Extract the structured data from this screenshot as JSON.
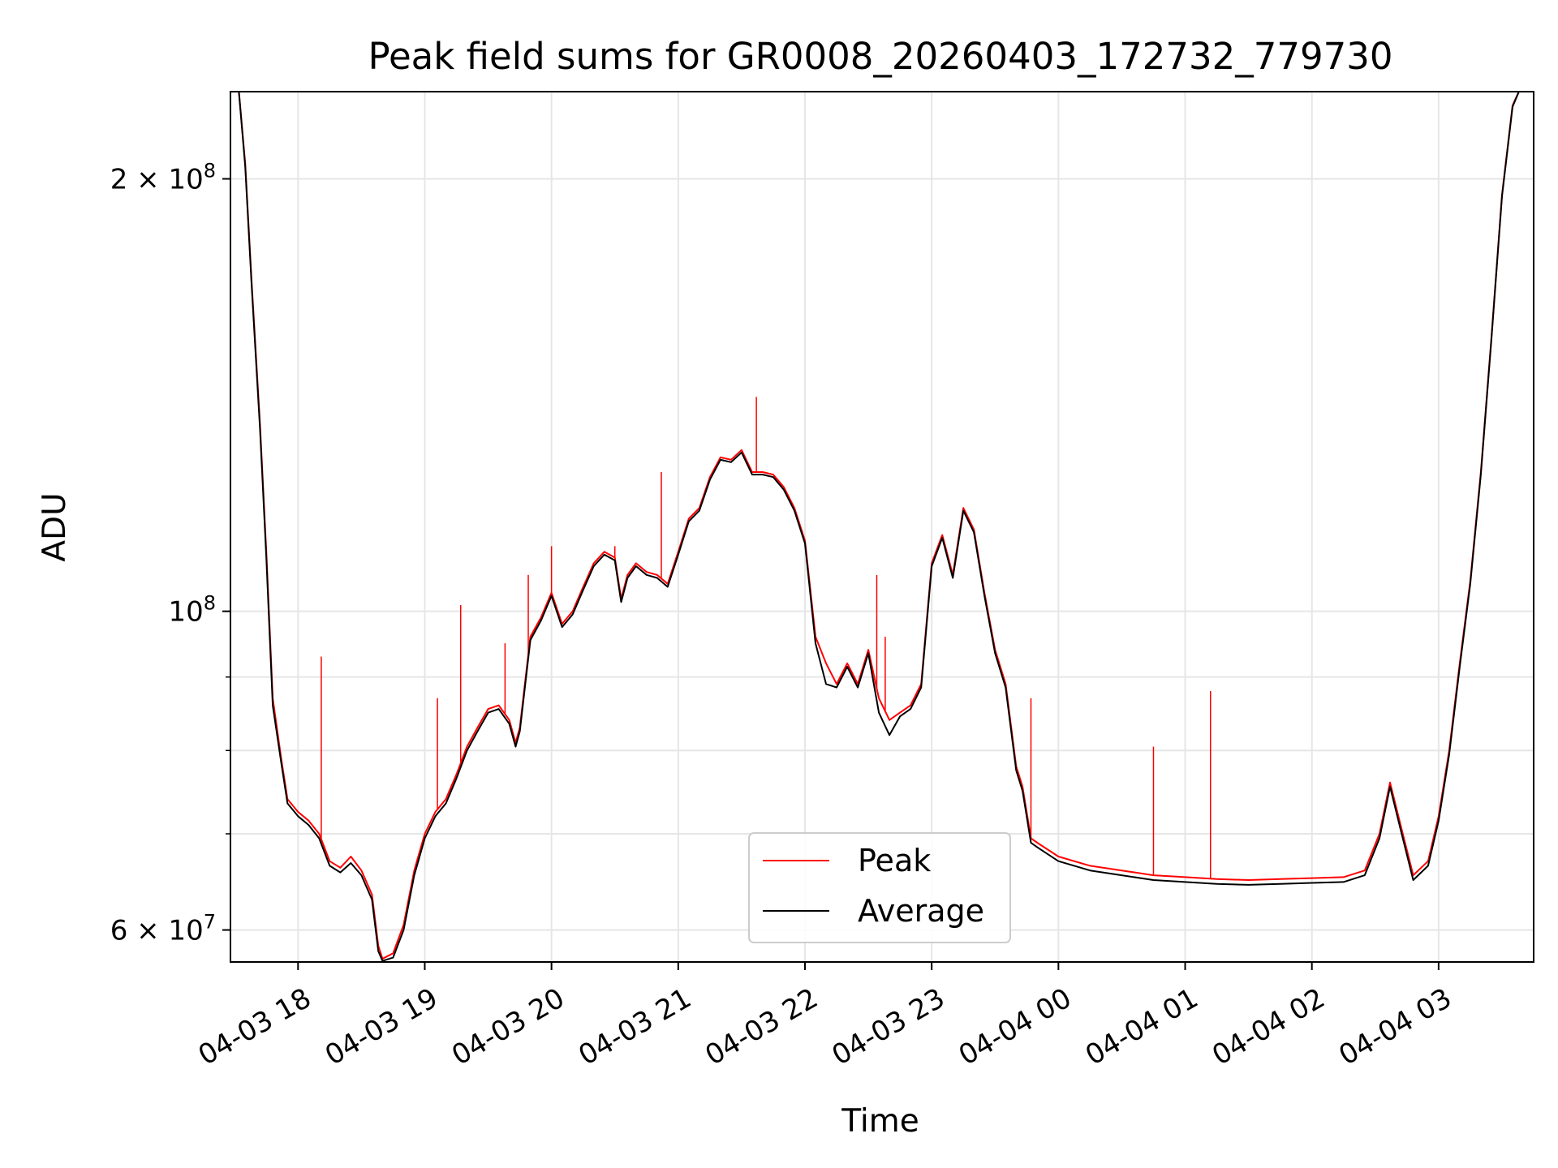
{
  "chart_data": {
    "type": "line",
    "title": "Peak field sums for GR0008_20260403_172732_779730",
    "xlabel": "Time",
    "ylabel": "ADU",
    "xlim": [
      "2026-04-03 17:28",
      "2026-04-04 03:45"
    ],
    "ylim": [
      57000000,
      230000000
    ],
    "yscale": "log",
    "grid": true,
    "legend_position": "lower center",
    "x_ticks": [
      "2026-04-03 18:00",
      "2026-04-03 19:00",
      "2026-04-03 20:00",
      "2026-04-03 21:00",
      "2026-04-03 22:00",
      "2026-04-03 23:00",
      "2026-04-04 00:00",
      "2026-04-04 01:00",
      "2026-04-04 02:00",
      "2026-04-04 03:00"
    ],
    "x_tick_labels": [
      "04-03 18",
      "04-03 19",
      "04-03 20",
      "04-03 21",
      "04-03 22",
      "04-03 23",
      "04-04 00",
      "04-04 01",
      "04-04 02",
      "04-04 03"
    ],
    "y_major_ticks": [
      {
        "value": 60000000,
        "base": "6 × 10",
        "exp": "7"
      },
      {
        "value": 100000000,
        "base": "10",
        "exp": "8"
      },
      {
        "value": 200000000,
        "base": "2 × 10",
        "exp": "8"
      }
    ],
    "y_minor_ticks": [
      70000000,
      80000000,
      90000000
    ],
    "series": [
      {
        "name": "Peak",
        "color": "#ff0000",
        "points": [
          [
            "2026-04-03 17:32",
            230000000
          ],
          [
            "2026-04-03 17:35",
            205000000
          ],
          [
            "2026-04-03 17:38",
            170000000
          ],
          [
            "2026-04-03 17:42",
            135000000
          ],
          [
            "2026-04-03 17:45",
            110000000
          ],
          [
            "2026-04-03 17:48",
            87000000
          ],
          [
            "2026-04-03 17:52",
            79000000
          ],
          [
            "2026-04-03 17:55",
            74000000
          ],
          [
            "2026-04-03 18:00",
            72500000
          ],
          [
            "2026-04-03 18:05",
            71500000
          ],
          [
            "2026-04-03 18:10",
            70000000
          ],
          [
            "2026-04-03 18:15",
            67000000
          ],
          [
            "2026-04-03 18:20",
            66300000
          ],
          [
            "2026-04-03 18:25",
            67500000
          ],
          [
            "2026-04-03 18:30",
            66000000
          ],
          [
            "2026-04-03 18:35",
            63500000
          ],
          [
            "2026-04-03 18:38",
            58500000
          ],
          [
            "2026-04-03 18:40",
            57300000
          ],
          [
            "2026-04-03 18:45",
            57800000
          ],
          [
            "2026-04-03 18:50",
            60500000
          ],
          [
            "2026-04-03 18:55",
            66000000
          ],
          [
            "2026-04-03 19:00",
            70000000
          ],
          [
            "2026-04-03 19:05",
            72500000
          ],
          [
            "2026-04-03 19:10",
            74000000
          ],
          [
            "2026-04-03 19:15",
            77000000
          ],
          [
            "2026-04-03 19:20",
            80500000
          ],
          [
            "2026-04-03 19:25",
            83000000
          ],
          [
            "2026-04-03 19:30",
            85500000
          ],
          [
            "2026-04-03 19:35",
            86000000
          ],
          [
            "2026-04-03 19:40",
            84000000
          ],
          [
            "2026-04-03 19:43",
            81000000
          ],
          [
            "2026-04-03 19:45",
            83000000
          ],
          [
            "2026-04-03 19:50",
            96000000
          ],
          [
            "2026-04-03 19:55",
            99000000
          ],
          [
            "2026-04-03 20:00",
            103000000
          ],
          [
            "2026-04-03 20:05",
            98000000
          ],
          [
            "2026-04-03 20:10",
            100000000
          ],
          [
            "2026-04-03 20:15",
            104000000
          ],
          [
            "2026-04-03 20:20",
            108000000
          ],
          [
            "2026-04-03 20:25",
            110000000
          ],
          [
            "2026-04-03 20:30",
            109000000
          ],
          [
            "2026-04-03 20:33",
            102000000
          ],
          [
            "2026-04-03 20:36",
            106000000
          ],
          [
            "2026-04-03 20:40",
            108000000
          ],
          [
            "2026-04-03 20:45",
            106500000
          ],
          [
            "2026-04-03 20:50",
            106000000
          ],
          [
            "2026-04-03 20:55",
            104500000
          ],
          [
            "2026-04-03 21:00",
            110000000
          ],
          [
            "2026-04-03 21:05",
            116000000
          ],
          [
            "2026-04-03 21:10",
            118000000
          ],
          [
            "2026-04-03 21:15",
            124000000
          ],
          [
            "2026-04-03 21:20",
            128000000
          ],
          [
            "2026-04-03 21:25",
            127500000
          ],
          [
            "2026-04-03 21:30",
            129500000
          ],
          [
            "2026-04-03 21:35",
            125000000
          ],
          [
            "2026-04-03 21:40",
            125000000
          ],
          [
            "2026-04-03 21:45",
            124500000
          ],
          [
            "2026-04-03 21:50",
            122000000
          ],
          [
            "2026-04-03 21:55",
            118000000
          ],
          [
            "2026-04-03 22:00",
            112000000
          ],
          [
            "2026-04-03 22:05",
            96000000
          ],
          [
            "2026-04-03 22:10",
            92000000
          ],
          [
            "2026-04-03 22:15",
            89000000
          ],
          [
            "2026-04-03 22:20",
            92000000
          ],
          [
            "2026-04-03 22:25",
            89000000
          ],
          [
            "2026-04-03 22:30",
            94000000
          ],
          [
            "2026-04-03 22:35",
            87000000
          ],
          [
            "2026-04-03 22:40",
            84000000
          ],
          [
            "2026-04-03 22:45",
            85000000
          ],
          [
            "2026-04-03 22:50",
            86000000
          ],
          [
            "2026-04-03 22:55",
            89000000
          ],
          [
            "2026-04-03 23:00",
            108000000
          ],
          [
            "2026-04-03 23:05",
            113000000
          ],
          [
            "2026-04-03 23:10",
            106000000
          ],
          [
            "2026-04-03 23:15",
            118000000
          ],
          [
            "2026-04-03 23:20",
            114000000
          ],
          [
            "2026-04-03 23:25",
            103000000
          ],
          [
            "2026-04-03 23:30",
            94000000
          ],
          [
            "2026-04-03 23:35",
            89000000
          ],
          [
            "2026-04-03 23:40",
            78000000
          ],
          [
            "2026-04-03 23:43",
            75500000
          ],
          [
            "2026-04-03 23:47",
            69500000
          ],
          [
            "2026-04-03 23:50",
            69000000
          ],
          [
            "2026-04-04 00:00",
            67500000
          ],
          [
            "2026-04-04 00:15",
            66500000
          ],
          [
            "2026-04-04 00:30",
            66000000
          ],
          [
            "2026-04-04 00:45",
            65500000
          ],
          [
            "2026-04-04 01:00",
            65300000
          ],
          [
            "2026-04-04 01:15",
            65100000
          ],
          [
            "2026-04-04 01:30",
            65000000
          ],
          [
            "2026-04-04 01:45",
            65100000
          ],
          [
            "2026-04-04 02:00",
            65200000
          ],
          [
            "2026-04-04 02:15",
            65300000
          ],
          [
            "2026-04-04 02:25",
            66000000
          ],
          [
            "2026-04-04 02:32",
            70000000
          ],
          [
            "2026-04-04 02:37",
            76000000
          ],
          [
            "2026-04-04 02:42",
            71000000
          ],
          [
            "2026-04-04 02:48",
            65500000
          ],
          [
            "2026-04-04 02:55",
            67000000
          ],
          [
            "2026-04-04 03:00",
            72000000
          ],
          [
            "2026-04-04 03:05",
            80000000
          ],
          [
            "2026-04-04 03:10",
            92000000
          ],
          [
            "2026-04-04 03:15",
            105000000
          ],
          [
            "2026-04-04 03:20",
            125000000
          ],
          [
            "2026-04-04 03:25",
            155000000
          ],
          [
            "2026-04-04 03:30",
            195000000
          ],
          [
            "2026-04-04 03:35",
            225000000
          ],
          [
            "2026-04-04 03:38",
            230000000
          ]
        ],
        "spikes": [
          [
            "2026-04-03 18:11",
            93000000
          ],
          [
            "2026-04-03 19:06",
            87000000
          ],
          [
            "2026-04-03 19:17",
            101000000
          ],
          [
            "2026-04-03 19:38",
            95000000
          ],
          [
            "2026-04-03 19:49",
            106000000
          ],
          [
            "2026-04-03 20:00",
            111000000
          ],
          [
            "2026-04-03 20:30",
            111000000
          ],
          [
            "2026-04-03 20:52",
            125000000
          ],
          [
            "2026-04-03 21:37",
            141000000
          ],
          [
            "2026-04-03 22:34",
            106000000
          ],
          [
            "2026-04-03 22:38",
            96000000
          ],
          [
            "2026-04-03 23:47",
            87000000
          ],
          [
            "2026-04-04 00:45",
            80500000
          ],
          [
            "2026-04-04 01:12",
            88000000
          ]
        ]
      },
      {
        "name": "Average",
        "color": "#000000",
        "points": [
          [
            "2026-04-03 17:32",
            230000000
          ],
          [
            "2026-04-03 17:35",
            204000000
          ],
          [
            "2026-04-03 17:38",
            169000000
          ],
          [
            "2026-04-03 17:42",
            134000000
          ],
          [
            "2026-04-03 17:45",
            109000000
          ],
          [
            "2026-04-03 17:48",
            86000000
          ],
          [
            "2026-04-03 17:52",
            78500000
          ],
          [
            "2026-04-03 17:55",
            73500000
          ],
          [
            "2026-04-03 18:00",
            72000000
          ],
          [
            "2026-04-03 18:05",
            71000000
          ],
          [
            "2026-04-03 18:10",
            69500000
          ],
          [
            "2026-04-03 18:15",
            66500000
          ],
          [
            "2026-04-03 18:20",
            65800000
          ],
          [
            "2026-04-03 18:25",
            66800000
          ],
          [
            "2026-04-03 18:30",
            65500000
          ],
          [
            "2026-04-03 18:35",
            63000000
          ],
          [
            "2026-04-03 18:38",
            58000000
          ],
          [
            "2026-04-03 18:40",
            57100000
          ],
          [
            "2026-04-03 18:45",
            57400000
          ],
          [
            "2026-04-03 18:50",
            60000000
          ],
          [
            "2026-04-03 18:55",
            65500000
          ],
          [
            "2026-04-03 19:00",
            69500000
          ],
          [
            "2026-04-03 19:05",
            72000000
          ],
          [
            "2026-04-03 19:10",
            73500000
          ],
          [
            "2026-04-03 19:15",
            76500000
          ],
          [
            "2026-04-03 19:20",
            80000000
          ],
          [
            "2026-04-03 19:25",
            82500000
          ],
          [
            "2026-04-03 19:30",
            85000000
          ],
          [
            "2026-04-03 19:35",
            85500000
          ],
          [
            "2026-04-03 19:40",
            83500000
          ],
          [
            "2026-04-03 19:43",
            80500000
          ],
          [
            "2026-04-03 19:45",
            82500000
          ],
          [
            "2026-04-03 19:50",
            95500000
          ],
          [
            "2026-04-03 19:55",
            98500000
          ],
          [
            "2026-04-03 20:00",
            102500000
          ],
          [
            "2026-04-03 20:05",
            97500000
          ],
          [
            "2026-04-03 20:10",
            99500000
          ],
          [
            "2026-04-03 20:15",
            103500000
          ],
          [
            "2026-04-03 20:20",
            107500000
          ],
          [
            "2026-04-03 20:25",
            109500000
          ],
          [
            "2026-04-03 20:30",
            108500000
          ],
          [
            "2026-04-03 20:33",
            101500000
          ],
          [
            "2026-04-03 20:36",
            105500000
          ],
          [
            "2026-04-03 20:40",
            107500000
          ],
          [
            "2026-04-03 20:45",
            106000000
          ],
          [
            "2026-04-03 20:50",
            105500000
          ],
          [
            "2026-04-03 20:55",
            104000000
          ],
          [
            "2026-04-03 21:00",
            109500000
          ],
          [
            "2026-04-03 21:05",
            115500000
          ],
          [
            "2026-04-03 21:10",
            117500000
          ],
          [
            "2026-04-03 21:15",
            123500000
          ],
          [
            "2026-04-03 21:20",
            127500000
          ],
          [
            "2026-04-03 21:25",
            127000000
          ],
          [
            "2026-04-03 21:30",
            129000000
          ],
          [
            "2026-04-03 21:35",
            124500000
          ],
          [
            "2026-04-03 21:40",
            124500000
          ],
          [
            "2026-04-03 21:45",
            124000000
          ],
          [
            "2026-04-03 21:50",
            121500000
          ],
          [
            "2026-04-03 21:55",
            117500000
          ],
          [
            "2026-04-03 22:00",
            111500000
          ],
          [
            "2026-04-03 22:05",
            95000000
          ],
          [
            "2026-04-03 22:10",
            89000000
          ],
          [
            "2026-04-03 22:15",
            88500000
          ],
          [
            "2026-04-03 22:20",
            91500000
          ],
          [
            "2026-04-03 22:25",
            88500000
          ],
          [
            "2026-04-03 22:30",
            93500000
          ],
          [
            "2026-04-03 22:35",
            85000000
          ],
          [
            "2026-04-03 22:40",
            82000000
          ],
          [
            "2026-04-03 22:45",
            84500000
          ],
          [
            "2026-04-03 22:50",
            85500000
          ],
          [
            "2026-04-03 22:55",
            88500000
          ],
          [
            "2026-04-03 23:00",
            107500000
          ],
          [
            "2026-04-03 23:05",
            112500000
          ],
          [
            "2026-04-03 23:10",
            105500000
          ],
          [
            "2026-04-03 23:15",
            117500000
          ],
          [
            "2026-04-03 23:20",
            113500000
          ],
          [
            "2026-04-03 23:25",
            102500000
          ],
          [
            "2026-04-03 23:30",
            93500000
          ],
          [
            "2026-04-03 23:35",
            88500000
          ],
          [
            "2026-04-03 23:40",
            77500000
          ],
          [
            "2026-04-03 23:43",
            75000000
          ],
          [
            "2026-04-03 23:47",
            69000000
          ],
          [
            "2026-04-03 23:50",
            68500000
          ],
          [
            "2026-04-04 00:00",
            67000000
          ],
          [
            "2026-04-04 00:15",
            66000000
          ],
          [
            "2026-04-04 00:30",
            65500000
          ],
          [
            "2026-04-04 00:45",
            65000000
          ],
          [
            "2026-04-04 01:00",
            64800000
          ],
          [
            "2026-04-04 01:15",
            64600000
          ],
          [
            "2026-04-04 01:30",
            64500000
          ],
          [
            "2026-04-04 01:45",
            64600000
          ],
          [
            "2026-04-04 02:00",
            64700000
          ],
          [
            "2026-04-04 02:15",
            64800000
          ],
          [
            "2026-04-04 02:25",
            65500000
          ],
          [
            "2026-04-04 02:32",
            69500000
          ],
          [
            "2026-04-04 02:37",
            75500000
          ],
          [
            "2026-04-04 02:42",
            70500000
          ],
          [
            "2026-04-04 02:48",
            65000000
          ],
          [
            "2026-04-04 02:55",
            66500000
          ],
          [
            "2026-04-04 03:00",
            71500000
          ],
          [
            "2026-04-04 03:05",
            79500000
          ],
          [
            "2026-04-04 03:10",
            91500000
          ],
          [
            "2026-04-04 03:15",
            104500000
          ],
          [
            "2026-04-04 03:20",
            124500000
          ],
          [
            "2026-04-04 03:25",
            154500000
          ],
          [
            "2026-04-04 03:30",
            194500000
          ],
          [
            "2026-04-04 03:35",
            224500000
          ],
          [
            "2026-04-04 03:38",
            230000000
          ]
        ]
      }
    ]
  }
}
